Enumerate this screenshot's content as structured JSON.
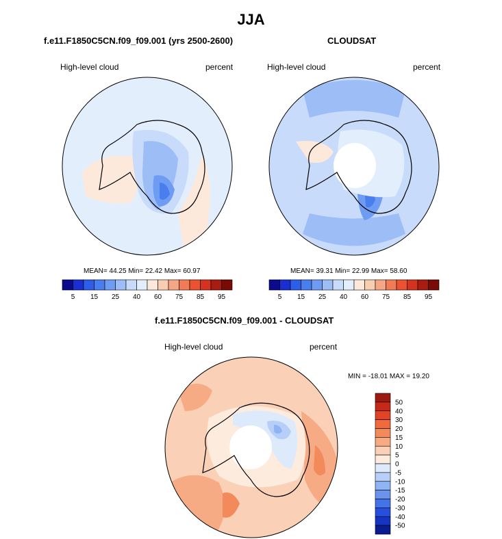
{
  "title": "JJA",
  "panels": [
    {
      "subtitle": "f.e11.F1850C5CN.f09_f09.001 (yrs 2500-2600)",
      "variable": "High-level cloud",
      "units": "percent",
      "stats": {
        "mean": "44.25",
        "min": "22.42",
        "max": "60.97"
      },
      "stats_text": "MEAN=  44.25  Min=  22.42  Max=  60.97"
    },
    {
      "subtitle": "CLOUDSAT",
      "variable": "High-level cloud",
      "units": "percent",
      "stats": {
        "mean": "39.31",
        "min": "22.99",
        "max": "58.60"
      },
      "stats_text": "MEAN=  39.31  Min=  22.99  Max=  58.60"
    },
    {
      "subtitle": "f.e11.F1850C5CN.f09_f09.001 - CLOUDSAT",
      "variable": "High-level cloud",
      "units": "percent",
      "stats": {
        "min": "-18.01",
        "max": "19.20"
      },
      "stats_text": "MIN = -18.01 MAX =  19.20"
    }
  ],
  "colorbar_abs": {
    "labels": [
      "5",
      "15",
      "25",
      "40",
      "60",
      "75",
      "85",
      "95"
    ],
    "colors": [
      "#0b0b8c",
      "#1a2ed1",
      "#2d5ee8",
      "#4a7eef",
      "#6f9cf3",
      "#9dbdf7",
      "#c9dbfa",
      "#e3eefc",
      "#fde9dc",
      "#f9cdb0",
      "#f5a684",
      "#f17b55",
      "#ea5230",
      "#d43320",
      "#a81c12",
      "#7a0a06"
    ]
  },
  "colorbar_diff": {
    "labels": [
      "50",
      "40",
      "30",
      "20",
      "15",
      "10",
      "5",
      "0",
      "-5",
      "-10",
      "-15",
      "-20",
      "-30",
      "-40",
      "-50"
    ],
    "colors": [
      "#9c1b10",
      "#c42a17",
      "#e04424",
      "#ef6a3c",
      "#f38a5c",
      "#f7ab84",
      "#fad1b6",
      "#fdebdd",
      "#ddeafb",
      "#b7cff8",
      "#8fb3f3",
      "#6a93ee",
      "#4473e8",
      "#2550df",
      "#1634c2",
      "#0a1c8f"
    ]
  }
}
